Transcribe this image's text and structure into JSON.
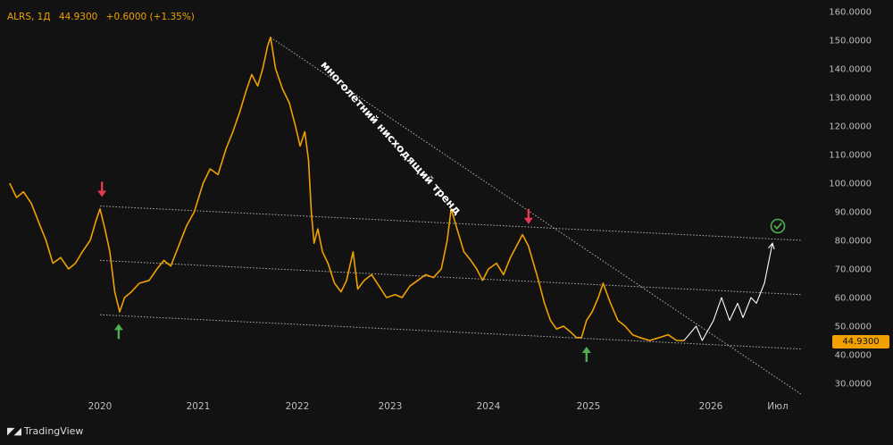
{
  "header": {
    "symbol": "ALRS, 1Д",
    "price": "44.9300",
    "change": "+0.6000 (+1.35%)"
  },
  "last_price_label": "44.9300",
  "branding": {
    "name": "TradingView"
  },
  "colors": {
    "background": "#121212",
    "price_line": "#f0a000",
    "trend_line": "#cfcfcf",
    "projection": "#ffffff",
    "down_arrow": "#e8384f",
    "up_arrow": "#4caf50",
    "check": "#4caf50"
  },
  "icons": {
    "logo": "tradingview-logo-icon",
    "check": "check-circle-icon"
  },
  "chart_data": {
    "type": "line",
    "title": "ALRS, 1Д",
    "xlabel": "",
    "ylabel": "",
    "ylim": [
      25,
      162
    ],
    "y_ticks": [
      "160.0000",
      "150.0000",
      "140.0000",
      "130.0000",
      "120.0000",
      "110.0000",
      "100.0000",
      "90.0000",
      "80.0000",
      "70.0000",
      "60.0000",
      "50.0000",
      "40.0000",
      "30.0000"
    ],
    "x_ticks": [
      "2020",
      "2021",
      "2022",
      "2023",
      "2024",
      "2025",
      "2026",
      "Июл"
    ],
    "x_tick_dates": [
      2020.0,
      2021.0,
      2022.0,
      2023.0,
      2024.0,
      2025.0,
      2026.0,
      2026.5
    ],
    "xlim": [
      2019.08,
      2026.83
    ],
    "grid": false,
    "series": [
      {
        "points": [
          [
            2019.08,
            100
          ],
          [
            2019.15,
            95
          ],
          [
            2019.22,
            97
          ],
          [
            2019.3,
            93
          ],
          [
            2019.38,
            86
          ],
          [
            2019.45,
            80
          ],
          [
            2019.52,
            72
          ],
          [
            2019.6,
            74
          ],
          [
            2019.68,
            70
          ],
          [
            2019.75,
            72
          ],
          [
            2019.82,
            76
          ],
          [
            2019.9,
            80
          ],
          [
            2019.96,
            87
          ],
          [
            2020.0,
            91
          ],
          [
            2020.05,
            84
          ],
          [
            2020.1,
            76
          ],
          [
            2020.15,
            62
          ],
          [
            2020.2,
            55
          ],
          [
            2020.25,
            60
          ],
          [
            2020.32,
            62
          ],
          [
            2020.4,
            65
          ],
          [
            2020.5,
            66
          ],
          [
            2020.58,
            70
          ],
          [
            2020.65,
            73
          ],
          [
            2020.72,
            71
          ],
          [
            2020.8,
            78
          ],
          [
            2020.88,
            85
          ],
          [
            2020.96,
            90
          ],
          [
            2021.05,
            100
          ],
          [
            2021.12,
            105
          ],
          [
            2021.2,
            103
          ],
          [
            2021.28,
            112
          ],
          [
            2021.35,
            118
          ],
          [
            2021.42,
            125
          ],
          [
            2021.48,
            132
          ],
          [
            2021.54,
            138
          ],
          [
            2021.6,
            134
          ],
          [
            2021.65,
            140
          ],
          [
            2021.7,
            148
          ],
          [
            2021.73,
            151
          ],
          [
            2021.78,
            140
          ],
          [
            2021.85,
            133
          ],
          [
            2021.92,
            128
          ],
          [
            2021.98,
            120
          ],
          [
            2022.03,
            113
          ],
          [
            2022.08,
            118
          ],
          [
            2022.12,
            108
          ],
          [
            2022.15,
            90
          ],
          [
            2022.18,
            79
          ],
          [
            2022.22,
            84
          ],
          [
            2022.27,
            76
          ],
          [
            2022.33,
            72
          ],
          [
            2022.4,
            65
          ],
          [
            2022.47,
            62
          ],
          [
            2022.53,
            66
          ],
          [
            2022.6,
            76
          ],
          [
            2022.65,
            63
          ],
          [
            2022.72,
            66
          ],
          [
            2022.8,
            68
          ],
          [
            2022.88,
            64
          ],
          [
            2022.96,
            60
          ],
          [
            2023.05,
            61
          ],
          [
            2023.12,
            60
          ],
          [
            2023.2,
            64
          ],
          [
            2023.28,
            66
          ],
          [
            2023.36,
            68
          ],
          [
            2023.44,
            67
          ],
          [
            2023.52,
            70
          ],
          [
            2023.58,
            80
          ],
          [
            2023.62,
            91
          ],
          [
            2023.68,
            84
          ],
          [
            2023.75,
            76
          ],
          [
            2023.82,
            73
          ],
          [
            2023.88,
            70
          ],
          [
            2023.94,
            66
          ],
          [
            2024.0,
            70
          ],
          [
            2024.08,
            72
          ],
          [
            2024.15,
            68
          ],
          [
            2024.22,
            74
          ],
          [
            2024.28,
            78
          ],
          [
            2024.34,
            82
          ],
          [
            2024.4,
            78
          ],
          [
            2024.45,
            72
          ],
          [
            2024.5,
            66
          ],
          [
            2024.56,
            58
          ],
          [
            2024.62,
            52
          ],
          [
            2024.68,
            49
          ],
          [
            2024.75,
            50
          ],
          [
            2024.82,
            48
          ],
          [
            2024.88,
            46
          ],
          [
            2024.93,
            46
          ],
          [
            2024.98,
            52
          ],
          [
            2025.03,
            55
          ],
          [
            2025.08,
            60
          ],
          [
            2025.12,
            65
          ],
          [
            2025.18,
            58
          ],
          [
            2025.24,
            52
          ],
          [
            2025.3,
            50
          ],
          [
            2025.36,
            47
          ],
          [
            2025.42,
            46
          ],
          [
            2025.5,
            45
          ],
          [
            2025.58,
            46
          ],
          [
            2025.65,
            47
          ],
          [
            2025.72,
            45
          ],
          [
            2025.78,
            44.93
          ]
        ]
      },
      {
        "points": [
          [
            2025.78,
            44.93
          ],
          [
            2025.88,
            50
          ],
          [
            2025.93,
            45
          ],
          [
            2026.02,
            52
          ],
          [
            2026.08,
            60
          ],
          [
            2026.14,
            52
          ],
          [
            2026.2,
            58
          ],
          [
            2026.24,
            53
          ],
          [
            2026.3,
            60
          ],
          [
            2026.34,
            58
          ],
          [
            2026.4,
            65
          ],
          [
            2026.46,
            79
          ]
        ]
      }
    ],
    "trend_lines": [
      {
        "from": [
          2021.73,
          151
        ],
        "to": [
          2026.68,
          26
        ]
      },
      {
        "from": [
          2020.0,
          92
        ],
        "to": [
          2026.68,
          80
        ]
      },
      {
        "from": [
          2020.0,
          73
        ],
        "to": [
          2026.68,
          61
        ]
      },
      {
        "from": [
          2020.0,
          54
        ],
        "to": [
          2026.68,
          42
        ]
      }
    ],
    "annotations": [
      {
        "text": "многолетний нисходящий тренд",
        "x": 2022.98,
        "y": 115,
        "angle": 47.8
      }
    ],
    "markers": [
      {
        "type": "down-arrow",
        "x": 2020.02,
        "y": 98
      },
      {
        "type": "up-arrow",
        "x": 2020.19,
        "y": 48
      },
      {
        "type": "down-arrow",
        "x": 2024.4,
        "y": 88.5
      },
      {
        "type": "up-arrow",
        "x": 2024.98,
        "y": 40
      },
      {
        "type": "check",
        "x": 2026.5,
        "y": 85
      }
    ]
  }
}
